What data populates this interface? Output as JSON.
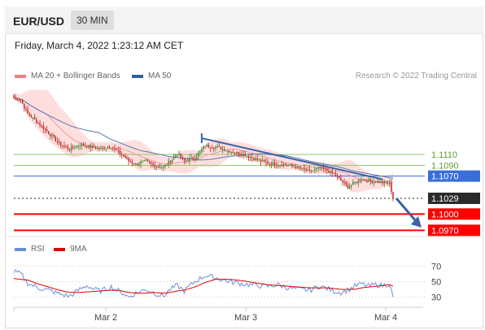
{
  "header": {
    "symbol": "EUR/USD",
    "interval": "30 MIN"
  },
  "timestamp": "Friday, March 4, 2022 1:23:12 AM CET",
  "legend": [
    {
      "label": "MA 20 + Bollinger Bands",
      "color": "#f08080"
    },
    {
      "label": "MA 50",
      "color": "#2f5f98"
    }
  ],
  "rsi_legend": [
    {
      "label": "RSI",
      "color": "#6a8fd8"
    },
    {
      "label": "9MA",
      "color": "#e00000"
    }
  ],
  "credit": "Research © 2022 Trading Central",
  "colors": {
    "up": "#3c8a2e",
    "down": "#c12a2a",
    "band": "#ffd3d3",
    "ma50": "#5a77b0",
    "ma20": "#e8a0a0",
    "trend": "#3a62a8",
    "support": "#ff0000",
    "pivot": "#3a6fd8",
    "resistance": "#8fc470",
    "last": "#2a2a2a"
  },
  "chart_data": [
    {
      "type": "candlestick",
      "title": "EUR/USD",
      "x_ticks": [
        "Mar 2",
        "Mar 3",
        "Mar 4"
      ],
      "ylim": [
        1.096,
        1.123
      ],
      "levels": [
        {
          "value": 1.111,
          "label": "1.1110",
          "kind": "resistance"
        },
        {
          "value": 1.109,
          "label": "1.1090",
          "kind": "resistance"
        },
        {
          "value": 1.107,
          "label": "1.1070",
          "kind": "pivot"
        },
        {
          "value": 1.1029,
          "label": "1.1029",
          "kind": "last"
        },
        {
          "value": 1.1,
          "label": "1.1000",
          "kind": "support"
        },
        {
          "value": 1.097,
          "label": "1.0970",
          "kind": "support"
        }
      ],
      "series": [
        {
          "name": "MA 20 + Bollinger Bands",
          "close_anchors": [
            [
              0,
              1.1215
            ],
            [
              4,
              1.121
            ],
            [
              8,
              1.1185
            ],
            [
              14,
              1.1168
            ],
            [
              20,
              1.115
            ],
            [
              26,
              1.113
            ],
            [
              32,
              1.112
            ],
            [
              38,
              1.1128
            ],
            [
              44,
              1.1124
            ],
            [
              50,
              1.112
            ],
            [
              56,
              1.1124
            ],
            [
              62,
              1.111
            ],
            [
              66,
              1.1098
            ],
            [
              70,
              1.1092
            ],
            [
              76,
              1.1098
            ],
            [
              80,
              1.109
            ],
            [
              86,
              1.1086
            ],
            [
              90,
              1.1098
            ],
            [
              94,
              1.1112
            ],
            [
              98,
              1.1098
            ],
            [
              104,
              1.1104
            ],
            [
              110,
              1.1126
            ],
            [
              116,
              1.1124
            ],
            [
              124,
              1.1116
            ],
            [
              132,
              1.111
            ],
            [
              140,
              1.11
            ],
            [
              146,
              1.1094
            ],
            [
              152,
              1.1092
            ],
            [
              158,
              1.109
            ],
            [
              164,
              1.1085
            ],
            [
              170,
              1.1078
            ],
            [
              176,
              1.1085
            ],
            [
              180,
              1.108
            ],
            [
              184,
              1.1074
            ],
            [
              188,
              1.1062
            ],
            [
              192,
              1.105
            ],
            [
              196,
              1.1058
            ],
            [
              200,
              1.1064
            ],
            [
              204,
              1.1062
            ],
            [
              208,
              1.106
            ],
            [
              212,
              1.1058
            ],
            [
              216,
              1.1056
            ],
            [
              218,
              1.1029
            ]
          ]
        },
        {
          "name": "MA 50",
          "values": "derived"
        }
      ],
      "trendline": {
        "from": [
          108,
          1.114
        ],
        "to": [
          212,
          1.1064
        ]
      }
    },
    {
      "type": "line",
      "title": "RSI",
      "ylim": [
        20,
        80
      ],
      "y_ticks": [
        70,
        50,
        30
      ],
      "series": [
        {
          "name": "RSI",
          "anchors": [
            [
              0,
              63
            ],
            [
              4,
              60
            ],
            [
              8,
              48
            ],
            [
              14,
              42
            ],
            [
              20,
              39
            ],
            [
              26,
              34
            ],
            [
              32,
              31
            ],
            [
              38,
              40
            ],
            [
              42,
              45
            ],
            [
              46,
              40
            ],
            [
              50,
              38
            ],
            [
              56,
              43
            ],
            [
              62,
              36
            ],
            [
              66,
              30
            ],
            [
              70,
              35
            ],
            [
              76,
              40
            ],
            [
              80,
              36
            ],
            [
              86,
              31
            ],
            [
              90,
              40
            ],
            [
              94,
              45
            ],
            [
              98,
              38
            ],
            [
              104,
              50
            ],
            [
              110,
              58
            ],
            [
              116,
              55
            ],
            [
              124,
              50
            ],
            [
              132,
              47
            ],
            [
              140,
              45
            ],
            [
              146,
              44
            ],
            [
              152,
              46
            ],
            [
              158,
              42
            ],
            [
              164,
              40
            ],
            [
              170,
              39
            ],
            [
              176,
              44
            ],
            [
              180,
              41
            ],
            [
              184,
              38
            ],
            [
              188,
              36
            ],
            [
              192,
              39
            ],
            [
              196,
              44
            ],
            [
              200,
              47
            ],
            [
              204,
              44
            ],
            [
              208,
              46
            ],
            [
              212,
              45
            ],
            [
              216,
              47
            ],
            [
              218,
              30
            ]
          ]
        },
        {
          "name": "9MA",
          "anchors": [
            [
              0,
              54
            ],
            [
              8,
              52
            ],
            [
              14,
              47
            ],
            [
              20,
              43
            ],
            [
              26,
              39
            ],
            [
              32,
              36
            ],
            [
              38,
              36
            ],
            [
              44,
              37
            ],
            [
              50,
              38
            ],
            [
              56,
              39
            ],
            [
              62,
              38
            ],
            [
              66,
              36
            ],
            [
              70,
              35
            ],
            [
              76,
              35
            ],
            [
              80,
              36
            ],
            [
              86,
              35
            ],
            [
              90,
              36
            ],
            [
              94,
              38
            ],
            [
              98,
              39
            ],
            [
              104,
              43
            ],
            [
              110,
              49
            ],
            [
              116,
              53
            ],
            [
              124,
              53
            ],
            [
              132,
              51
            ],
            [
              140,
              48
            ],
            [
              146,
              46
            ],
            [
              152,
              45
            ],
            [
              158,
              44
            ],
            [
              164,
              43
            ],
            [
              170,
              42
            ],
            [
              176,
              42
            ],
            [
              180,
              42
            ],
            [
              184,
              41
            ],
            [
              188,
              40
            ],
            [
              192,
              40
            ],
            [
              196,
              40
            ],
            [
              200,
              42
            ],
            [
              204,
              43
            ],
            [
              208,
              44
            ],
            [
              212,
              45
            ],
            [
              216,
              46
            ],
            [
              218,
              44
            ]
          ]
        }
      ]
    }
  ]
}
